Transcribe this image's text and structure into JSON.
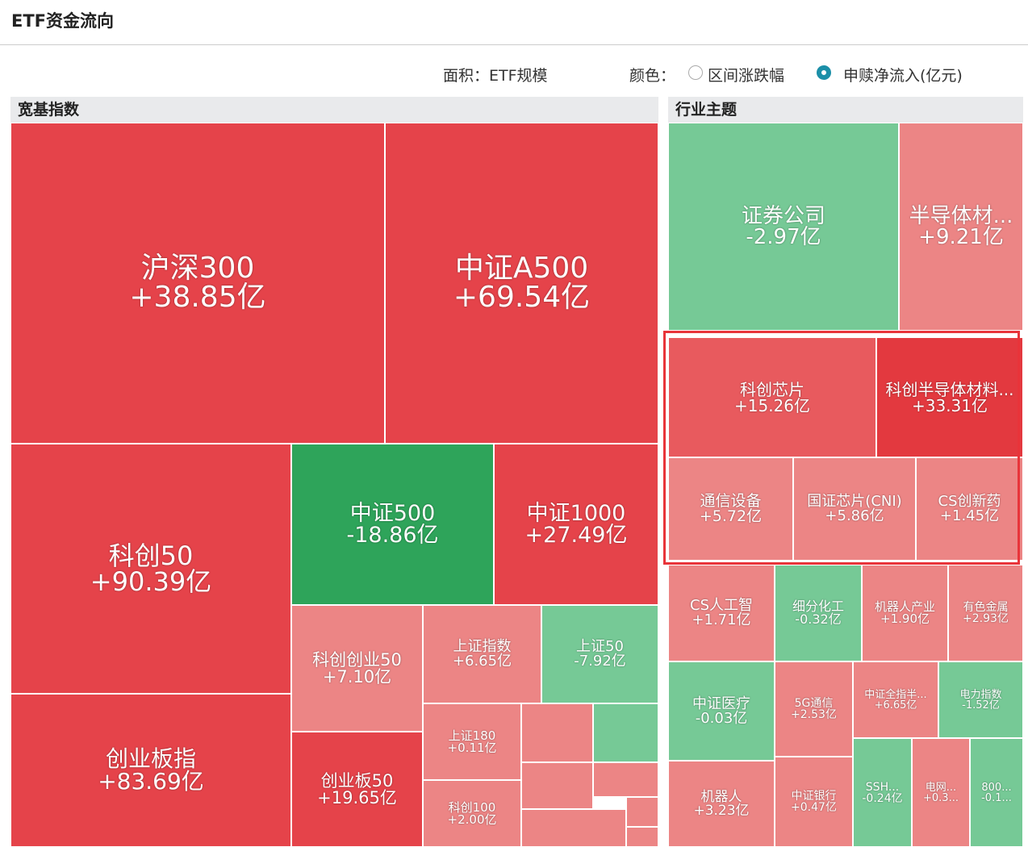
{
  "header": {
    "title": "ETF资金流向"
  },
  "controls": {
    "area_label": "面积：ETF规模",
    "color_label": "颜色：",
    "options": [
      {
        "label": "区间涨跌幅",
        "selected": false
      },
      {
        "label": "申赎净流入(亿元)",
        "selected": true
      }
    ]
  },
  "panels": [
    {
      "title": "宽基指数",
      "tiles": [
        {
          "name": "沪深300",
          "flow": "+38.85亿",
          "color": "#e5434a"
        },
        {
          "name": "中证A500",
          "flow": "+69.54亿",
          "color": "#e5434a"
        },
        {
          "name": "科创50",
          "flow": "+90.39亿",
          "color": "#e5434a"
        },
        {
          "name": "创业板指",
          "flow": "+83.69亿",
          "color": "#e5434a"
        },
        {
          "name": "中证500",
          "flow": "-18.86亿",
          "color": "#2ea45a"
        },
        {
          "name": "中证1000",
          "flow": "+27.49亿",
          "color": "#e5434a"
        },
        {
          "name": "科创创业50",
          "flow": "+7.10亿",
          "color": "#ec8585"
        },
        {
          "name": "创业板50",
          "flow": "+19.65亿",
          "color": "#e5434a"
        },
        {
          "name": "上证指数",
          "flow": "+6.65亿",
          "color": "#ec8585"
        },
        {
          "name": "上证50",
          "flow": "-7.92亿",
          "color": "#76c996"
        },
        {
          "name": "上证180",
          "flow": "+0.11亿",
          "color": "#ec8585"
        },
        {
          "name": "科创100",
          "flow": "+2.00亿",
          "color": "#ec8585"
        }
      ]
    },
    {
      "title": "行业主题",
      "tiles": [
        {
          "name": "证券公司",
          "flow": "-2.97亿",
          "color": "#76c996"
        },
        {
          "name": "半导体材...",
          "flow": "+9.21亿",
          "color": "#ec8585"
        },
        {
          "name": "科创芯片",
          "flow": "+15.26亿",
          "color": "#e85a5e"
        },
        {
          "name": "科创半导体材料...",
          "flow": "+33.31亿",
          "color": "#e3393f"
        },
        {
          "name": "通信设备",
          "flow": "+5.72亿",
          "color": "#ec8585"
        },
        {
          "name": "国证芯片(CNI)",
          "flow": "+5.86亿",
          "color": "#ec8585"
        },
        {
          "name": "CS创新药",
          "flow": "+1.45亿",
          "color": "#ec8585"
        },
        {
          "name": "CS人工智",
          "flow": "+1.71亿",
          "color": "#ec8585"
        },
        {
          "name": "细分化工",
          "flow": "-0.32亿",
          "color": "#76c996"
        },
        {
          "name": "机器人产业",
          "flow": "+1.90亿",
          "color": "#ec8585"
        },
        {
          "name": "有色金属",
          "flow": "+2.93亿",
          "color": "#ec8585"
        },
        {
          "name": "中证医疗",
          "flow": "-0.03亿",
          "color": "#76c996"
        },
        {
          "name": "5G通信",
          "flow": "+2.53亿",
          "color": "#ec8585"
        },
        {
          "name": "中证全指半...",
          "flow": "+6.65亿",
          "color": "#ec8585"
        },
        {
          "name": "电力指数",
          "flow": "-1.52亿",
          "color": "#76c996"
        },
        {
          "name": "机器人",
          "flow": "+3.23亿",
          "color": "#ec8585"
        },
        {
          "name": "中证银行",
          "flow": "+0.47亿",
          "color": "#ec8585"
        },
        {
          "name": "SSH...",
          "flow": "-0.24亿",
          "color": "#76c996"
        },
        {
          "name": "电网...",
          "flow": "+0.3...",
          "color": "#ec8585"
        },
        {
          "name": "800...",
          "flow": "-0.1...",
          "color": "#76c996"
        }
      ]
    }
  ]
}
